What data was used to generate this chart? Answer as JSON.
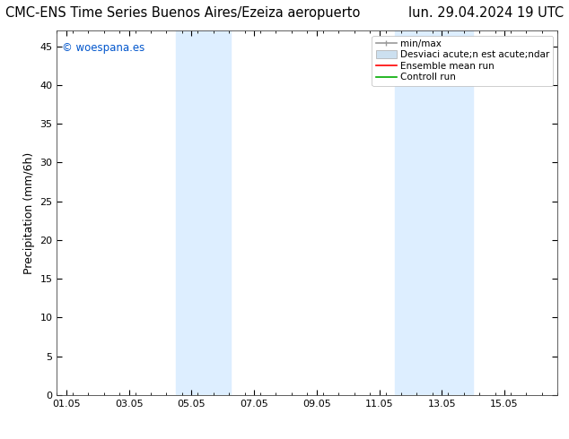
{
  "title_left": "CMC-ENS Time Series Buenos Aires/Ezeiza aeropuerto",
  "title_right": "lun. 29.04.2024 19 UTC",
  "ylabel": "Precipitation (mm/6h)",
  "ylim": [
    0,
    47
  ],
  "yticks": [
    0,
    5,
    10,
    15,
    20,
    25,
    30,
    35,
    40,
    45
  ],
  "background_color": "#ffffff",
  "plot_bg_color": "#ffffff",
  "watermark": "© woespana.es",
  "watermark_color": "#0055cc",
  "shaded_regions": [
    {
      "xstart": 3.5,
      "xend": 5.25,
      "color": "#ddeeff"
    },
    {
      "xstart": 10.5,
      "xend": 13.0,
      "color": "#ddeeff"
    }
  ],
  "xmin": -0.3,
  "xmax": 15.7,
  "xtick_positions": [
    0.0,
    2.0,
    4.0,
    6.0,
    8.0,
    10.0,
    12.0,
    14.0
  ],
  "xtick_labels": [
    "01.05",
    "03.05",
    "05.05",
    "07.05",
    "09.05",
    "11.05",
    "13.05",
    "15.05"
  ],
  "legend_labels": [
    "min/max",
    "Desviaci  acute;n est  acute;ndar",
    "Ensemble mean run",
    "Controll run"
  ],
  "legend_label_minmax": "min/max",
  "legend_label_std": "Desviaci acute;n est acute;ndar",
  "legend_label_ens": "Ensemble mean run",
  "legend_label_ctrl": "Controll run",
  "minmax_color": "#999999",
  "std_color": "#cce0f0",
  "ens_color": "#ff0000",
  "ctrl_color": "#00aa00",
  "title_fontsize": 10.5,
  "tick_fontsize": 8,
  "ylabel_fontsize": 9,
  "legend_fontsize": 7.5
}
